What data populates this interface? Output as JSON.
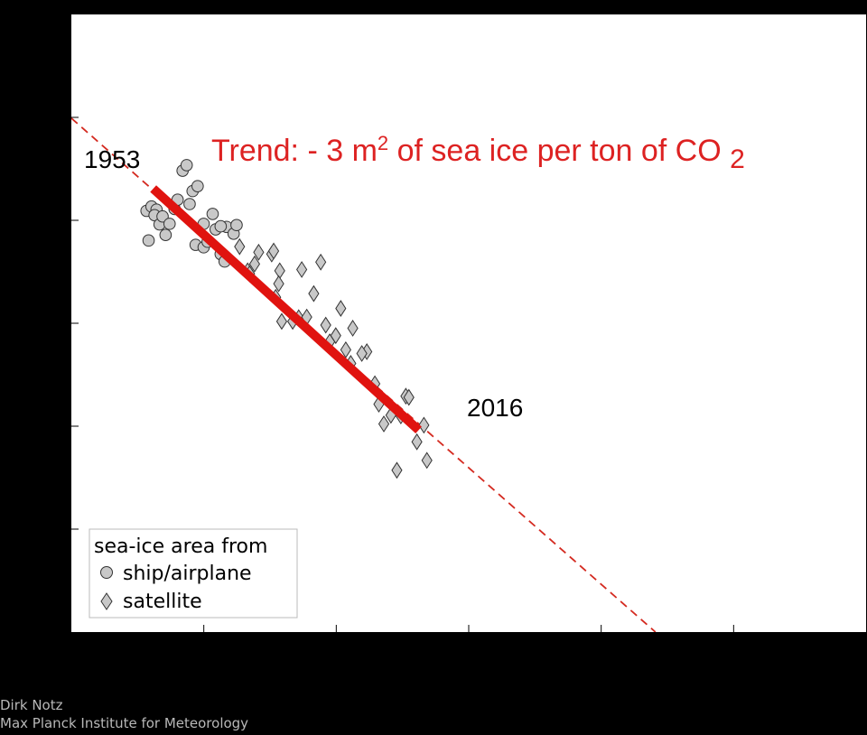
{
  "chart_data": {
    "type": "scatter",
    "annotation": {
      "parts": [
        "Trend: - 3 m",
        "2",
        " of sea ice per ton of CO ",
        "2"
      ],
      "color": "#dd2222"
    },
    "start_label": "1953",
    "end_label": "2016",
    "legend": {
      "title": "sea-ice area from",
      "items": [
        "ship/airplane",
        "satellite"
      ],
      "placement": "bottom-left"
    },
    "xlim": [
      0,
      1
    ],
    "ylim": [
      0,
      1
    ],
    "grid": false,
    "marker_colors": {
      "point_fill": "#c8c8c8",
      "point_stroke": "#333333",
      "trend": "#e0130f",
      "extension": "#d42a20"
    },
    "trend": {
      "solid": {
        "x": [
          0.103,
          0.437
        ],
        "y": [
          0.718,
          0.327
        ]
      },
      "dashed": {
        "x": [
          0.0,
          0.735
        ],
        "y": [
          0.832,
          0.0
        ]
      }
    },
    "series": [
      {
        "name": "ship/airplane",
        "marker": "circle",
        "x": [
          0.0946,
          0.1009,
          0.1072,
          0.0972,
          0.1047,
          0.111,
          0.1148,
          0.1186,
          0.1236,
          0.1299,
          0.1337,
          0.14,
          0.1451,
          0.1488,
          0.1564,
          0.1526,
          0.1589,
          0.1665,
          0.1665,
          0.1715,
          0.1778,
          0.1879,
          0.1816,
          0.1929,
          0.1954,
          0.1879,
          0.2042,
          0.2079
        ],
        "y": [
          0.682,
          0.689,
          0.684,
          0.634,
          0.675,
          0.66,
          0.673,
          0.643,
          0.661,
          0.685,
          0.7,
          0.747,
          0.756,
          0.693,
          0.627,
          0.714,
          0.722,
          0.661,
          0.623,
          0.632,
          0.677,
          0.612,
          0.652,
          0.6,
          0.656,
          0.657,
          0.645,
          0.659
        ]
      },
      {
        "name": "satellite",
        "marker": "diamond",
        "x": [
          0.2117,
          0.2218,
          0.2243,
          0.2357,
          0.2306,
          0.2521,
          0.2546,
          0.2622,
          0.2571,
          0.2609,
          0.2647,
          0.2785,
          0.2861,
          0.2899,
          0.305,
          0.2962,
          0.3138,
          0.3251,
          0.3201,
          0.3327,
          0.339,
          0.3516,
          0.3453,
          0.3541,
          0.3718,
          0.3655,
          0.3819,
          0.3932,
          0.3869,
          0.4021,
          0.4096,
          0.4209,
          0.4146,
          0.4348,
          0.4247,
          0.4474,
          0.4436
        ],
        "y": [
          0.624,
          0.585,
          0.58,
          0.615,
          0.596,
          0.612,
          0.617,
          0.585,
          0.542,
          0.564,
          0.503,
          0.503,
          0.509,
          0.587,
          0.548,
          0.51,
          0.599,
          0.47,
          0.497,
          0.48,
          0.524,
          0.435,
          0.457,
          0.492,
          0.454,
          0.451,
          0.402,
          0.337,
          0.369,
          0.351,
          0.262,
          0.382,
          0.35,
          0.308,
          0.38,
          0.278,
          0.335
        ]
      }
    ]
  },
  "credit": {
    "line1": "Dirk Notz",
    "line2": "Max Planck Institute for Meteorology"
  }
}
